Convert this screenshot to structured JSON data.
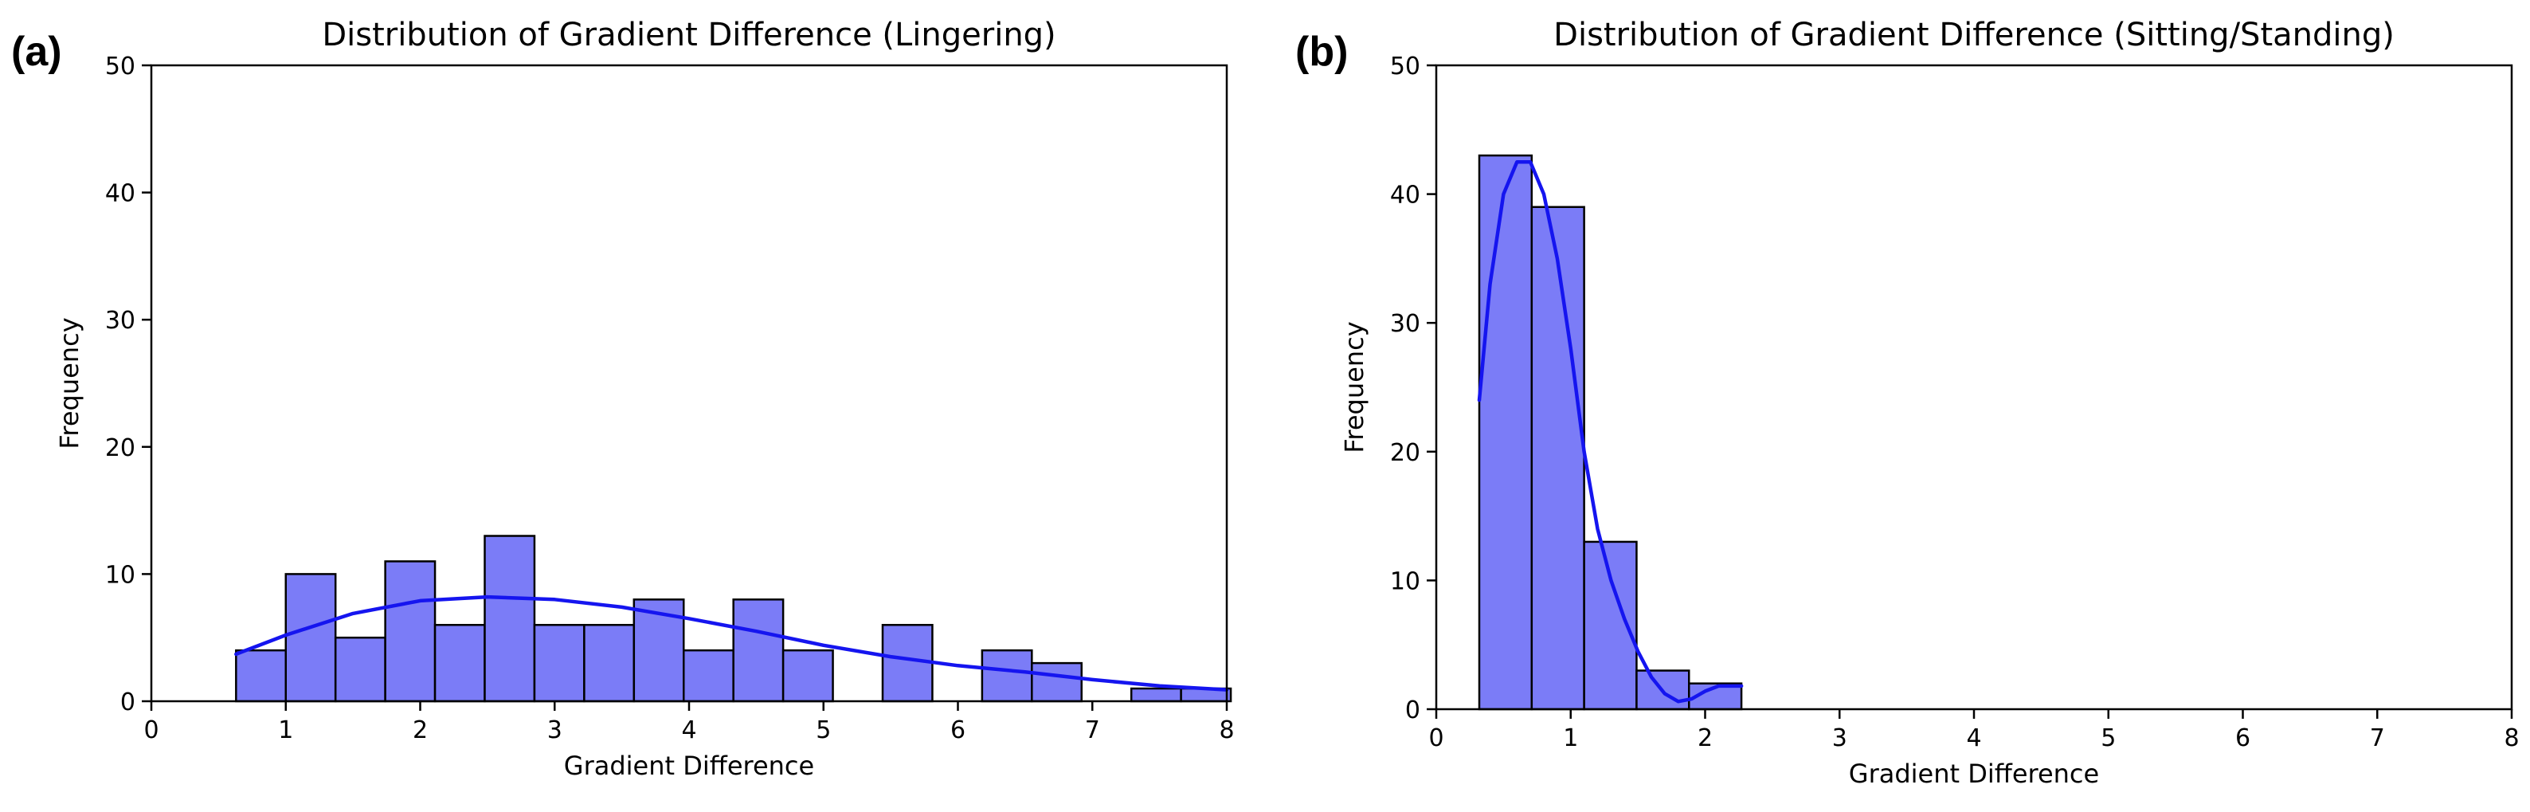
{
  "chart_data": [
    {
      "panel_label": "(a)",
      "type": "bar",
      "subtype": "histogram_with_kde",
      "title": "Distribution of Gradient Difference (Lingering)",
      "xlabel": "Gradient Difference",
      "ylabel": "Frequency",
      "xlim": [
        0,
        8
      ],
      "ylim": [
        0,
        50
      ],
      "xticks": [
        "0",
        "1",
        "2",
        "3",
        "4",
        "5",
        "6",
        "7",
        "8"
      ],
      "yticks": [
        "0",
        "10",
        "20",
        "30",
        "40",
        "50"
      ],
      "bin_edges": [
        0.63,
        1.0,
        1.37,
        1.74,
        2.11,
        2.48,
        2.85,
        3.22,
        3.59,
        3.96,
        4.33,
        4.7,
        5.07,
        5.44,
        5.81,
        6.18,
        6.55,
        6.92,
        7.29,
        7.66,
        8.03
      ],
      "values": [
        4,
        10,
        5,
        11,
        6,
        13,
        6,
        6,
        8,
        4,
        8,
        4,
        0,
        6,
        0,
        4,
        3,
        0,
        1,
        1
      ],
      "bar_color": "#7b7cf7",
      "bar_edge_color": "#000000",
      "kde": {
        "color": "#1515ef",
        "x": [
          0.63,
          1.0,
          1.5,
          2.0,
          2.5,
          3.0,
          3.5,
          4.0,
          4.5,
          5.0,
          5.5,
          6.0,
          6.5,
          7.0,
          7.5,
          8.0
        ],
        "y": [
          3.7,
          5.2,
          6.9,
          7.9,
          8.2,
          8.0,
          7.4,
          6.5,
          5.5,
          4.4,
          3.5,
          2.8,
          2.3,
          1.7,
          1.2,
          0.9
        ]
      }
    },
    {
      "panel_label": "(b)",
      "type": "bar",
      "subtype": "histogram_with_kde",
      "title": "Distribution of Gradient Difference (Sitting/Standing)",
      "xlabel": "Gradient Difference",
      "ylabel": "Frequency",
      "xlim": [
        0,
        8
      ],
      "ylim": [
        0,
        50
      ],
      "xticks": [
        "0",
        "1",
        "2",
        "3",
        "4",
        "5",
        "6",
        "7",
        "8"
      ],
      "yticks": [
        "0",
        "10",
        "20",
        "30",
        "40",
        "50"
      ],
      "bin_edges": [
        0.32,
        0.71,
        1.1,
        1.49,
        1.88,
        2.27
      ],
      "values": [
        43,
        39,
        13,
        3,
        2
      ],
      "bar_color": "#7b7cf7",
      "bar_edge_color": "#000000",
      "kde": {
        "color": "#1515ef",
        "x": [
          0.32,
          0.4,
          0.5,
          0.6,
          0.7,
          0.8,
          0.9,
          1.0,
          1.1,
          1.2,
          1.3,
          1.4,
          1.5,
          1.6,
          1.7,
          1.8,
          1.9,
          2.0,
          2.1,
          2.27
        ],
        "y": [
          24,
          33,
          40,
          42.5,
          42.5,
          40,
          35,
          28,
          20,
          14,
          10,
          7,
          4.5,
          2.5,
          1.2,
          0.6,
          0.8,
          1.4,
          1.8,
          1.8
        ]
      }
    }
  ]
}
